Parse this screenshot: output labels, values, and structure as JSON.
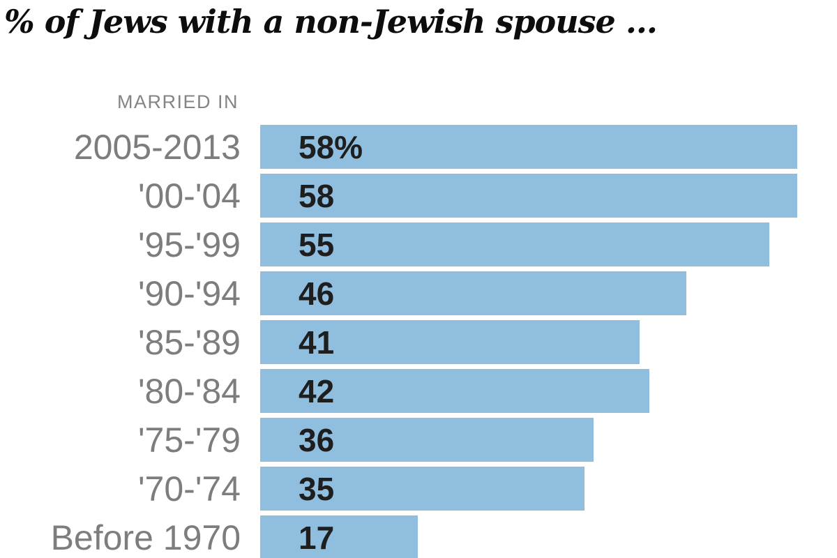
{
  "chart_data": {
    "type": "bar",
    "orientation": "horizontal",
    "title": "% of Jews with a non-Jewish spouse ...",
    "group_label": "MARRIED IN",
    "categories": [
      "2005-2013",
      "'00-'04",
      "'95-'99",
      "'90-'94",
      "'85-'89",
      "'80-'84",
      "'75-'79",
      "'70-'74",
      "Before 1970"
    ],
    "values": [
      58,
      58,
      55,
      46,
      41,
      42,
      36,
      35,
      17
    ],
    "value_labels": [
      "58%",
      "58",
      "55",
      "46",
      "41",
      "42",
      "36",
      "35",
      "17"
    ],
    "xlim": [
      0,
      62
    ],
    "grid": false,
    "legend": false,
    "bar_color": "#90BEDE",
    "label_color": "#7d7d7d",
    "value_color": "#1e1e1e",
    "title_color": "#0d0d0d"
  }
}
